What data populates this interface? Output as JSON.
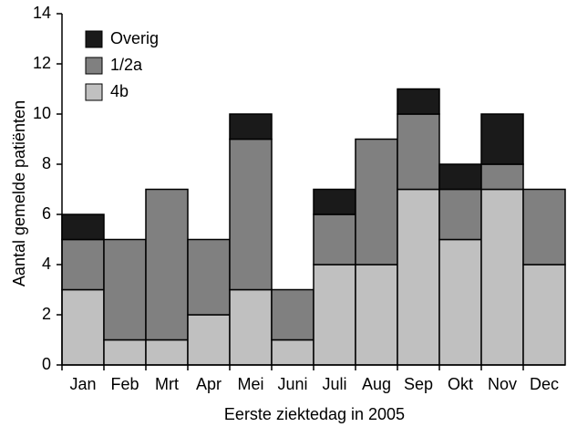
{
  "chart_data": {
    "type": "stacked_bar",
    "xlabel": "Eerste ziektedag in 2005",
    "ylabel": "Aantal gemelde patiënten",
    "categories": [
      "Jan",
      "Feb",
      "Mrt",
      "Apr",
      "Mei",
      "Juni",
      "Juli",
      "Aug",
      "Sep",
      "Okt",
      "Nov",
      "Dec"
    ],
    "series": [
      {
        "name": "4b",
        "color": "#c0c0c0",
        "values": [
          3,
          1,
          1,
          2,
          3,
          1,
          4,
          4,
          7,
          5,
          7,
          4
        ]
      },
      {
        "name": "1/2a",
        "color": "#808080",
        "values": [
          2,
          4,
          6,
          3,
          6,
          2,
          2,
          5,
          3,
          2,
          1,
          3
        ]
      },
      {
        "name": "Overig",
        "color": "#1a1a1a",
        "values": [
          1,
          0,
          0,
          0,
          1,
          0,
          1,
          0,
          1,
          1,
          2,
          0
        ]
      }
    ],
    "ylim": [
      0,
      14
    ],
    "yticks": [
      0,
      2,
      4,
      6,
      8,
      10,
      12,
      14
    ],
    "legend": "upper left"
  }
}
